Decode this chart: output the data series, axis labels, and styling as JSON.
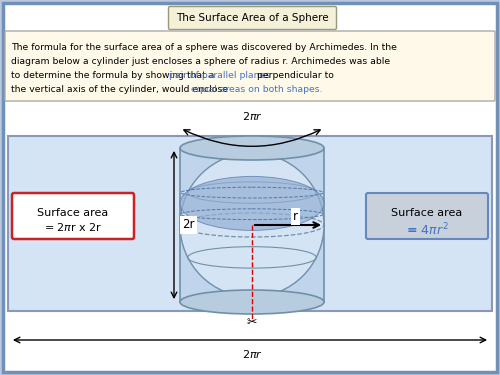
{
  "title": "The Surface Area of a Sphere",
  "desc_line1": "The formula for the surface area of a sphere was discovered by Archimedes. In the",
  "desc_line2": "diagram below a cylinder just encloses a sphere of radius r. Archimedes was able",
  "desc_line3_a": "to determine the formula by showing that a ",
  "desc_line3_b": "pair of parallel planes",
  "desc_line3_c": " perpendicular to",
  "desc_line4_a": "the vertical axis of the cylinder, would enclose ",
  "desc_line4_b": "equal areas on both shapes.",
  "bg_outer": "#b8c8e0",
  "bg_white": "#ffffff",
  "bg_title_box": "#f5f0d8",
  "bg_desc_box": "#fef9e8",
  "bg_diagram": "#d4e4f4",
  "blue_text": "#4472c4",
  "red_border": "#cc2222",
  "right_box_border": "#6688bb",
  "right_box_bg_top": "#c8d4e8",
  "right_box_bg_bot": "#a8b8cc",
  "cyl_fill": "#c0d4ec",
  "sphere_fill": "#d4e4f4",
  "band_fill": "#94b0d4",
  "ellipse_edge": "#7090a8",
  "arrow_color": "#111111",
  "dashed_red": "#dd0000"
}
